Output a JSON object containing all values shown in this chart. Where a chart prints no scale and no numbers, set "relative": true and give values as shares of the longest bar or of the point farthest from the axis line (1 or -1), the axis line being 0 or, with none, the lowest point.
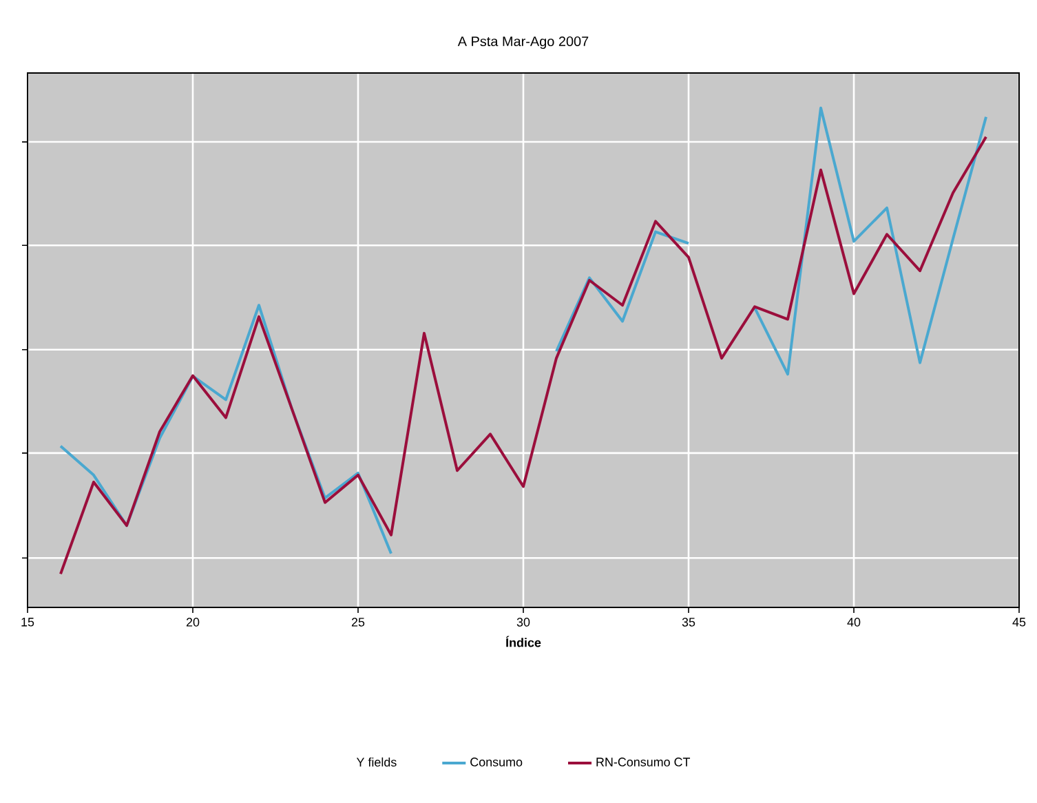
{
  "chart_data": {
    "type": "line",
    "title": "A Psta Mar-Ago 2007",
    "xlabel": "Índice",
    "legend_title": "Y fields",
    "x": [
      16,
      17,
      18,
      19,
      20,
      21,
      22,
      23,
      24,
      25,
      26,
      27,
      28,
      29,
      30,
      31,
      32,
      33,
      34,
      35,
      36,
      37,
      38,
      39,
      40,
      41,
      42,
      43,
      44
    ],
    "xlim": [
      15,
      45
    ],
    "xticks": [
      15,
      20,
      25,
      30,
      35,
      40,
      45
    ],
    "relative": true,
    "grid": true,
    "legend": "bottom",
    "marker": "none",
    "line_style": "solid",
    "series": [
      {
        "name": "Consumo",
        "color": "#4aa8d0",
        "values": [
          0.323,
          0.265,
          0.164,
          0.339,
          0.463,
          0.416,
          0.605,
          0.397,
          0.219,
          0.269,
          0.108,
          null,
          null,
          null,
          null,
          0.513,
          0.66,
          0.573,
          0.752,
          0.729,
          null,
          0.6,
          0.467,
          1,
          0.733,
          0.8,
          0.49,
          0.738,
          0.982
        ]
      },
      {
        "name": "RN-Consumo CT",
        "color": "#9b0e3c",
        "values": [
          0.067,
          0.251,
          0.164,
          0.352,
          0.464,
          0.38,
          0.582,
          0.397,
          0.21,
          0.265,
          0.145,
          0.549,
          0.274,
          0.347,
          0.242,
          0.499,
          0.655,
          0.605,
          0.773,
          0.701,
          0.499,
          0.602,
          0.577,
          0.876,
          0.628,
          0.747,
          0.674,
          0.83,
          0.942
        ]
      }
    ]
  }
}
